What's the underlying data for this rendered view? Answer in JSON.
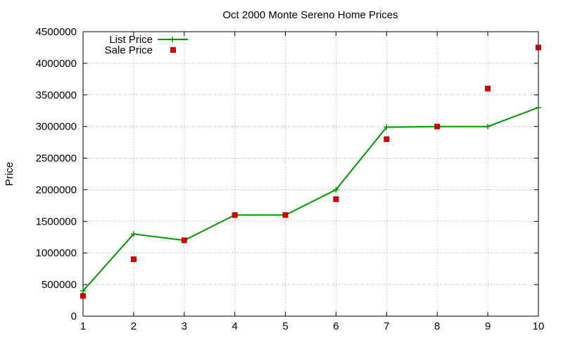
{
  "chart_data": {
    "type": "line",
    "title": "Oct 2000 Monte Sereno Home Prices",
    "xlabel": "",
    "ylabel": "Price",
    "xlim": [
      1,
      10
    ],
    "ylim": [
      0,
      4500000
    ],
    "x_ticks": [
      "1",
      "2",
      "3",
      "4",
      "5",
      "6",
      "7",
      "8",
      "9",
      "10"
    ],
    "y_ticks": [
      "0",
      "500000",
      "1000000",
      "1500000",
      "2000000",
      "2500000",
      "3000000",
      "3500000",
      "4000000",
      "4500000"
    ],
    "grid": true,
    "legend_position": "top-left",
    "series": [
      {
        "name": "List Price",
        "style": "line-plus",
        "color": "#009900",
        "x": [
          1,
          2,
          3,
          4,
          5,
          6,
          7,
          8,
          9,
          10
        ],
        "values": [
          400000,
          1300000,
          1200000,
          1600000,
          1600000,
          2000000,
          2990000,
          3000000,
          3000000,
          3300000
        ]
      },
      {
        "name": "Sale Price",
        "style": "square-points",
        "color": "#cc0000",
        "x": [
          1,
          2,
          3,
          4,
          5,
          6,
          7,
          8,
          9,
          10
        ],
        "values": [
          320000,
          900000,
          1200000,
          1600000,
          1600000,
          1850000,
          2800000,
          3000000,
          3600000,
          4250000
        ]
      }
    ]
  }
}
